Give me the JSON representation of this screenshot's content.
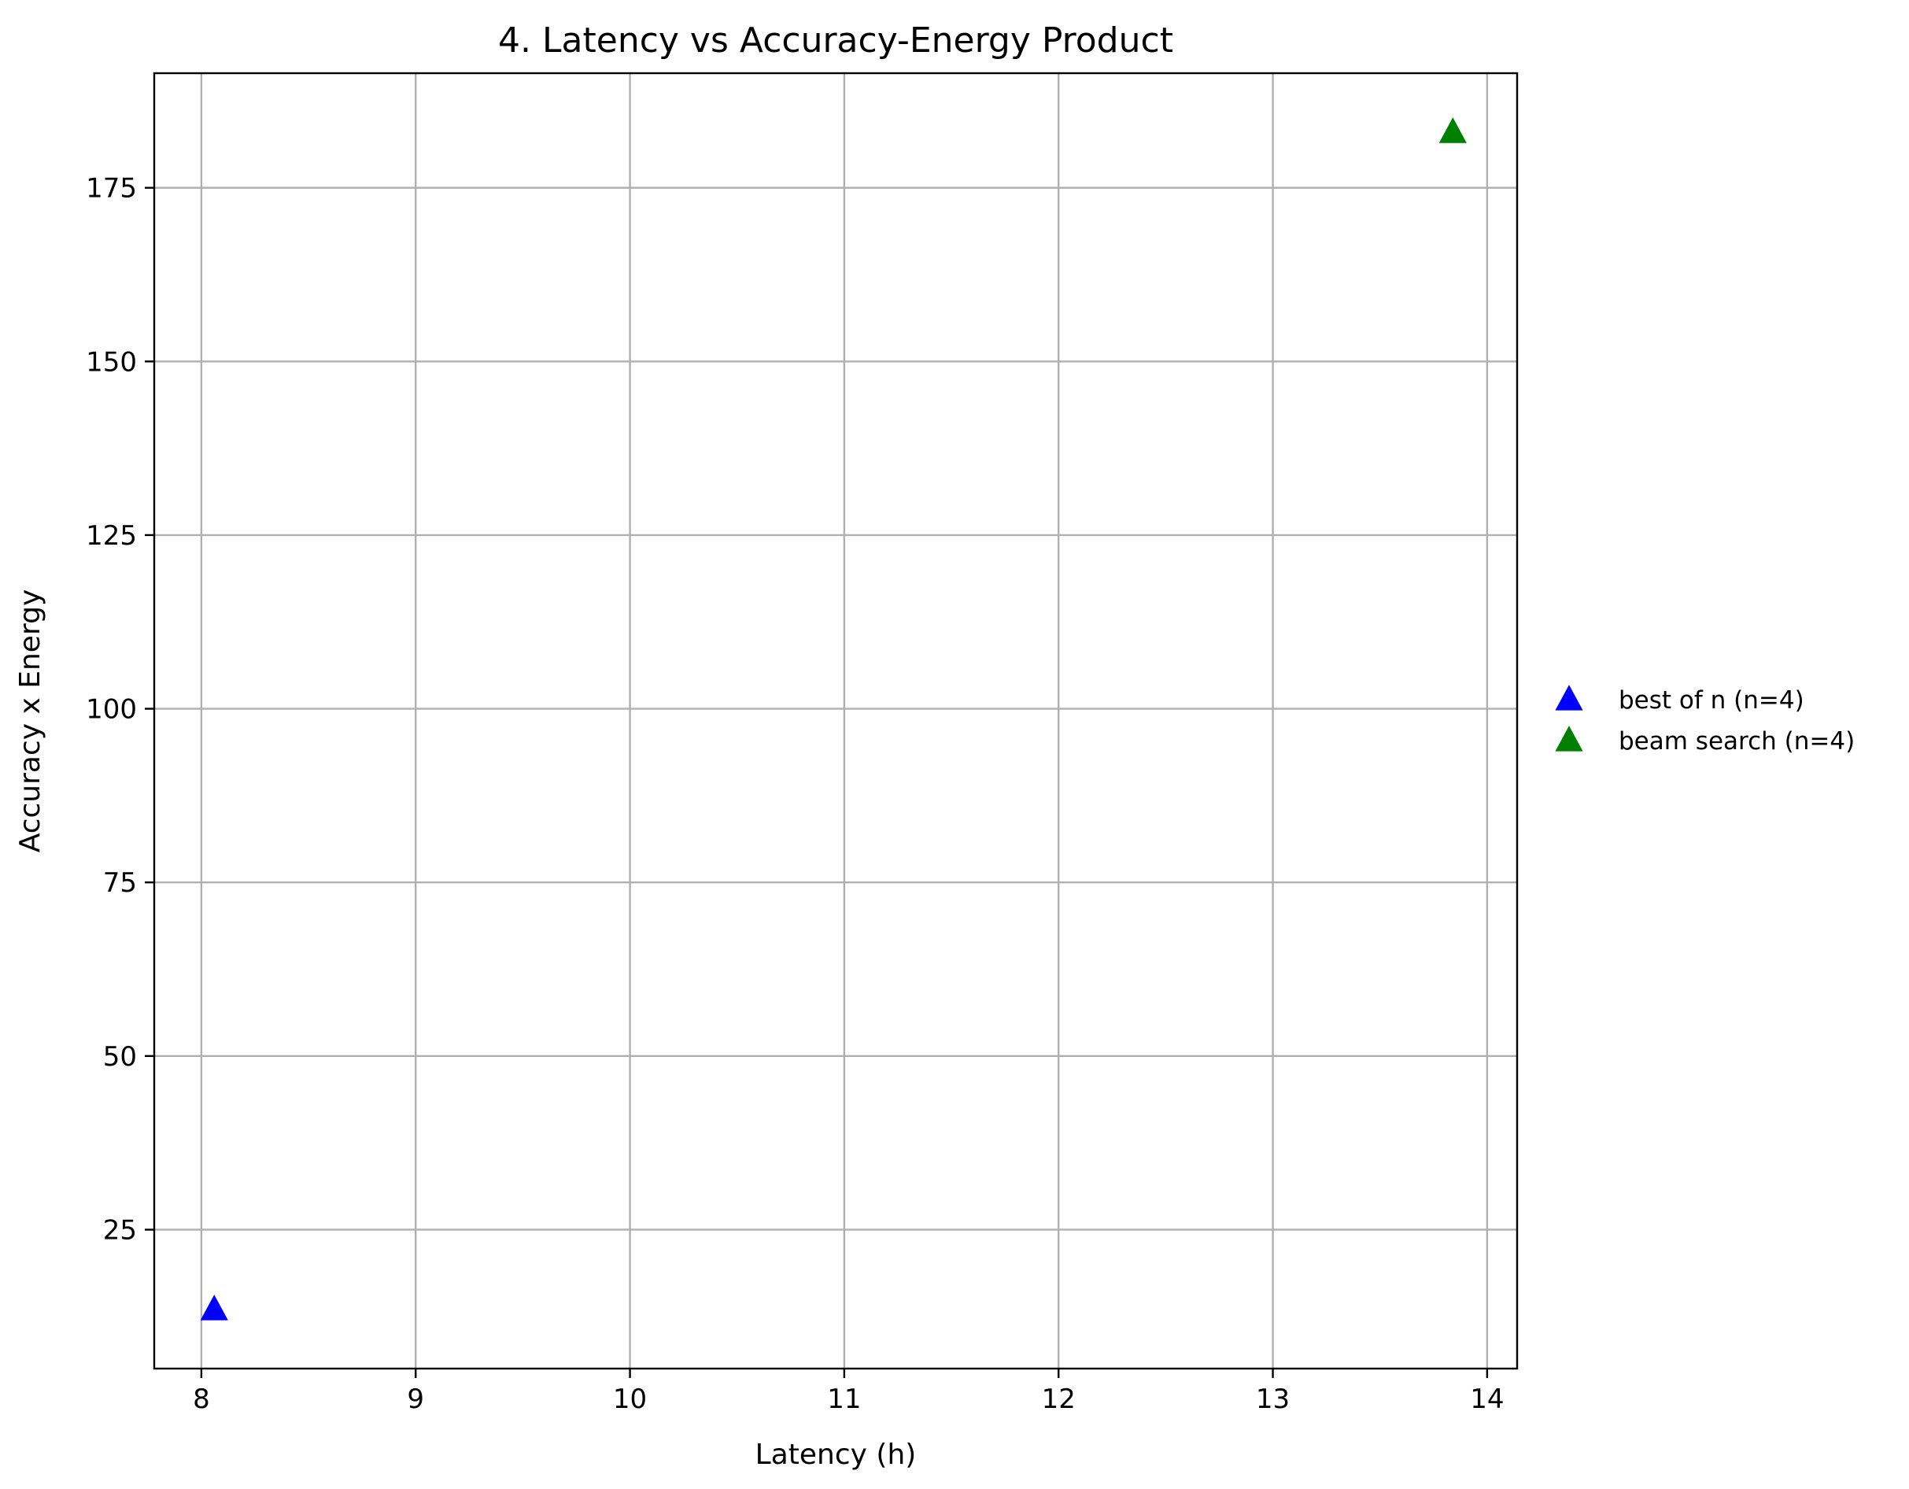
{
  "chart_data": {
    "type": "scatter",
    "title": "4. Latency vs Accuracy-Energy Product",
    "xlabel": "Latency (h)",
    "ylabel": "Accuracy x Energy",
    "xlim": [
      7.78,
      14.14
    ],
    "ylim": [
      5,
      191.5
    ],
    "x_ticks": [
      8,
      9,
      10,
      11,
      12,
      13,
      14
    ],
    "y_ticks": [
      25,
      50,
      75,
      100,
      125,
      150,
      175
    ],
    "grid": true,
    "legend_position": "right",
    "marker": "triangle-up",
    "series": [
      {
        "name": "best of n (n=4)",
        "color": "#0000ff",
        "points": [
          {
            "x": 8.06,
            "y": 13.5
          }
        ]
      },
      {
        "name": "beam search (n=4)",
        "color": "#008000",
        "points": [
          {
            "x": 13.84,
            "y": 183
          }
        ]
      }
    ]
  }
}
